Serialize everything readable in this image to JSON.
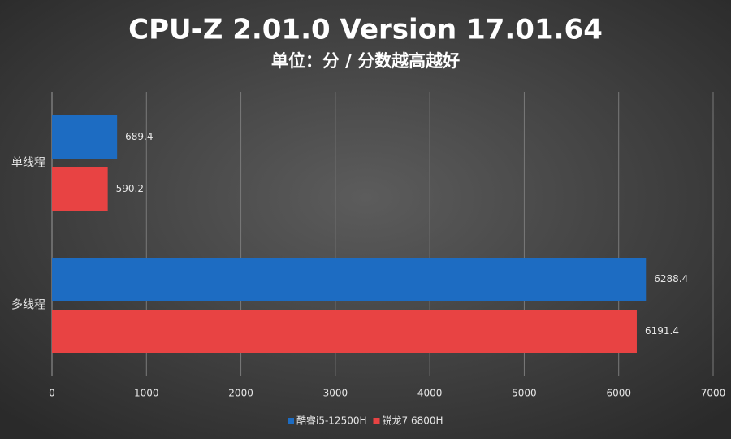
{
  "chart_data": {
    "type": "bar",
    "orientation": "horizontal",
    "title": "CPU-Z 2.01.0 Version 17.01.64",
    "subtitle": "单位：分 / 分数越高越好",
    "categories": [
      "单线程",
      "多线程"
    ],
    "series": [
      {
        "name": "酷睿i5-12500H",
        "color": "#1d6cc2",
        "values": [
          689.4,
          6288.4
        ]
      },
      {
        "name": "锐龙7 6800H",
        "color": "#e84343",
        "values": [
          590.2,
          6191.4
        ]
      }
    ],
    "xlim": [
      0,
      7000
    ],
    "xticks": [
      0,
      1000,
      2000,
      3000,
      4000,
      5000,
      6000,
      7000
    ],
    "grid": true,
    "legend": "bottom"
  }
}
